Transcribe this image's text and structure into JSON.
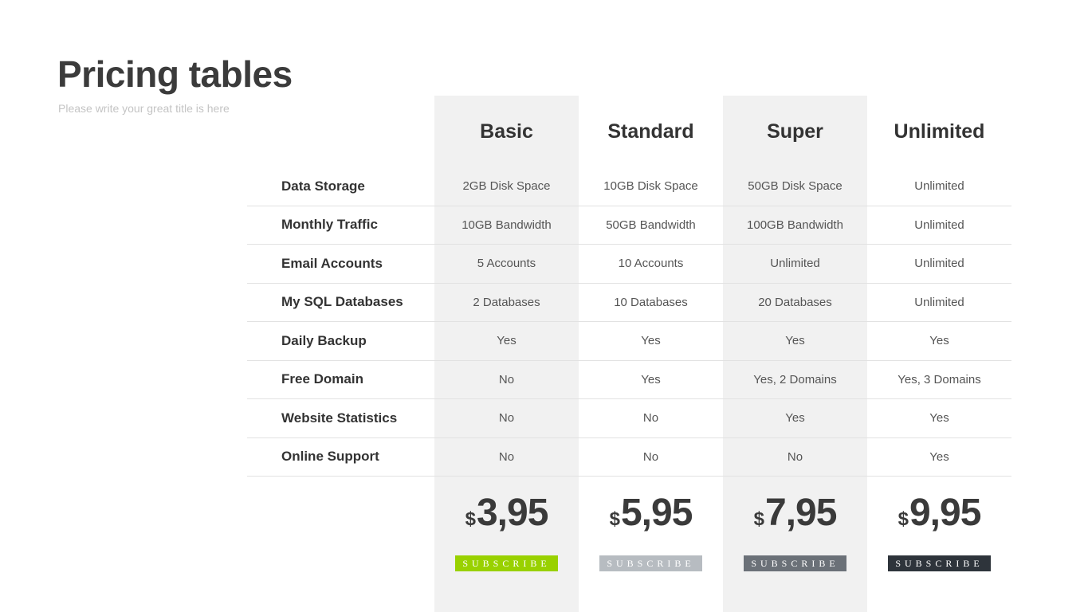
{
  "header": {
    "title": "Pricing tables",
    "subtitle": "Please write your great title is here"
  },
  "plans": [
    {
      "name": "Basic",
      "price": "3,95",
      "currency": "$",
      "button": "SUBSCRIBE",
      "button_color": "#99d100"
    },
    {
      "name": "Standard",
      "price": "5,95",
      "currency": "$",
      "button": "SUBSCRIBE",
      "button_color": "#b7bcc1"
    },
    {
      "name": "Super",
      "price": "7,95",
      "currency": "$",
      "button": "SUBSCRIBE",
      "button_color": "#6b7178"
    },
    {
      "name": "Unlimited",
      "price": "9,95",
      "currency": "$",
      "button": "SUBSCRIBE",
      "button_color": "#2e343b"
    }
  ],
  "features": [
    {
      "label": "Data Storage",
      "values": [
        "2GB Disk Space",
        "10GB Disk Space",
        "50GB Disk Space",
        "Unlimited"
      ]
    },
    {
      "label": "Monthly Traffic",
      "values": [
        "10GB Bandwidth",
        "50GB Bandwidth",
        "100GB Bandwidth",
        "Unlimited"
      ]
    },
    {
      "label": "Email Accounts",
      "values": [
        "5 Accounts",
        "10 Accounts",
        "Unlimited",
        "Unlimited"
      ]
    },
    {
      "label": "My SQL Databases",
      "values": [
        "2 Databases",
        "10 Databases",
        "20 Databases",
        "Unlimited"
      ]
    },
    {
      "label": "Daily Backup",
      "values": [
        "Yes",
        "Yes",
        "Yes",
        "Yes"
      ]
    },
    {
      "label": "Free Domain",
      "values": [
        "No",
        "Yes",
        "Yes, 2 Domains",
        "Yes, 3 Domains"
      ]
    },
    {
      "label": "Website Statistics",
      "values": [
        "No",
        "No",
        "Yes",
        "Yes"
      ]
    },
    {
      "label": "Online Support",
      "values": [
        "No",
        "No",
        "No",
        "Yes"
      ]
    }
  ]
}
